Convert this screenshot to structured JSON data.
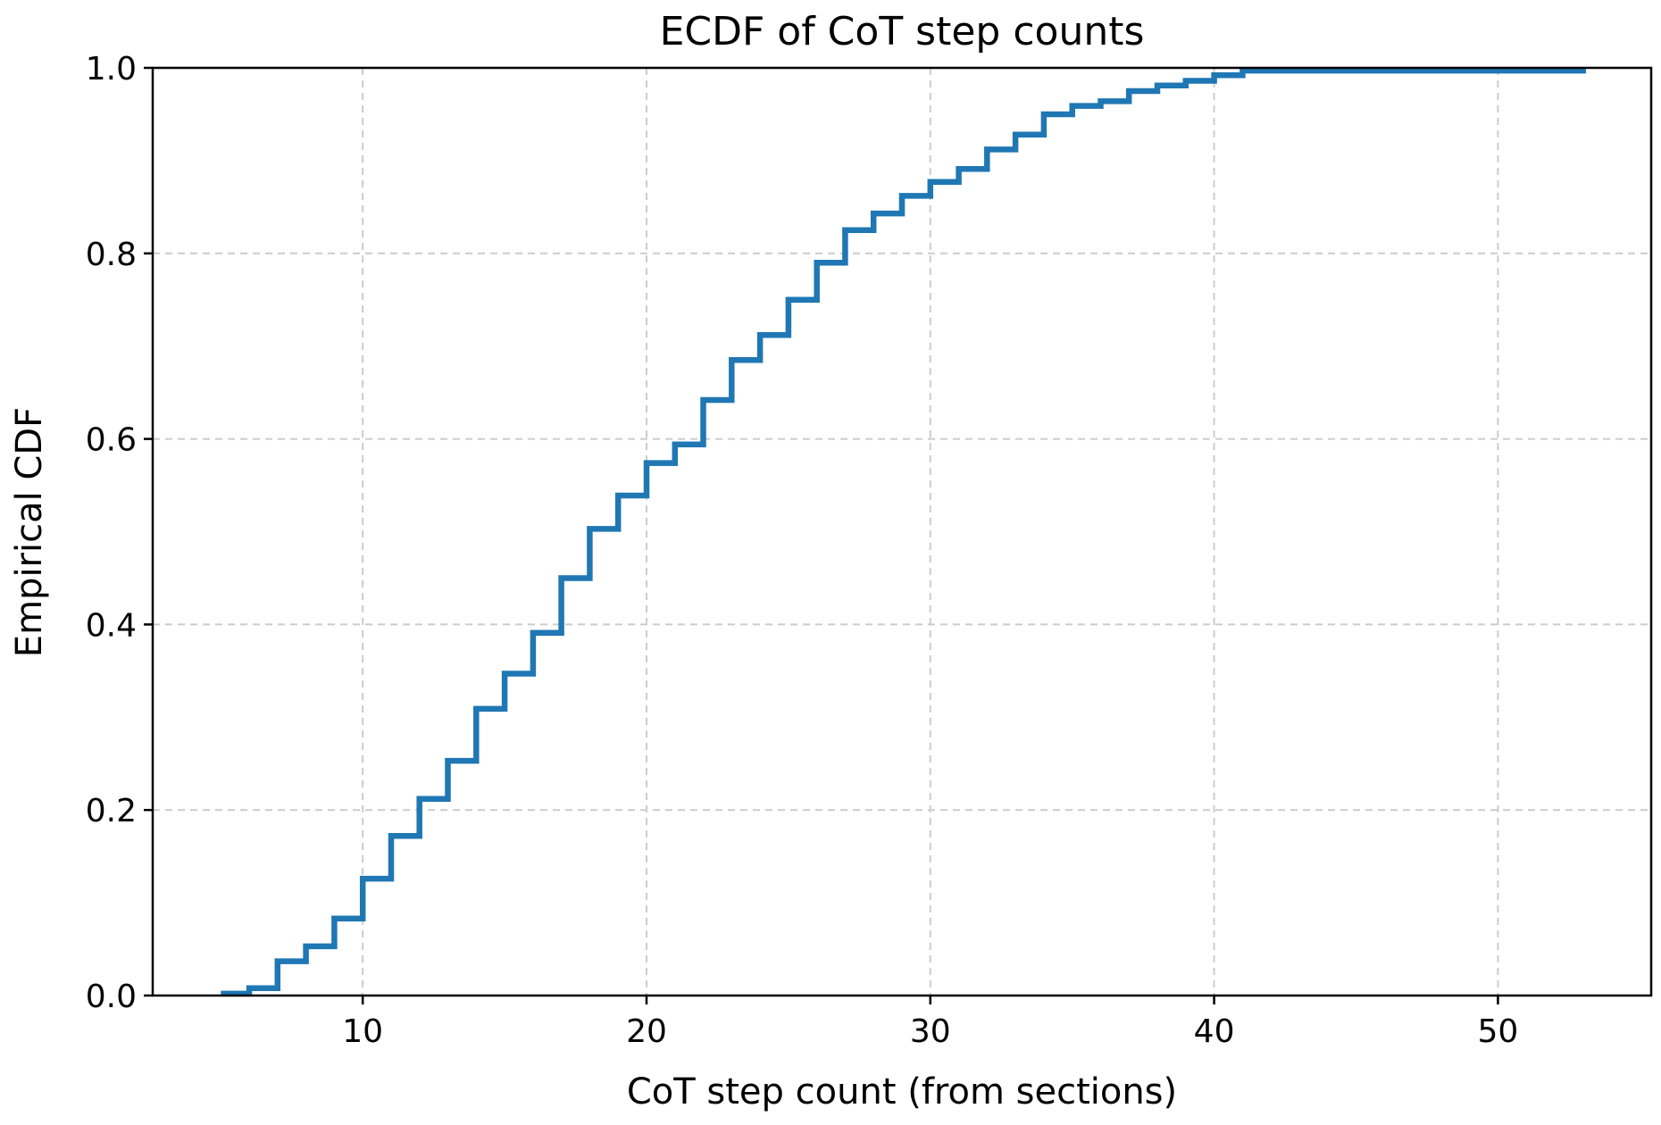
{
  "chart_data": {
    "type": "line",
    "step": "post",
    "title": "ECDF of CoT step counts",
    "xlabel": "CoT step count (from sections)",
    "ylabel": "Empirical CDF",
    "xlim": [
      2.6,
      55.4
    ],
    "ylim": [
      0,
      1
    ],
    "x_ticks": [
      10,
      20,
      30,
      40,
      50
    ],
    "y_ticks": [
      0.0,
      0.2,
      0.4,
      0.6,
      0.8,
      1.0
    ],
    "x_tick_labels": [
      "10",
      "20",
      "30",
      "40",
      "50"
    ],
    "y_tick_labels": [
      "0.0",
      "0.2",
      "0.4",
      "0.6",
      "0.8",
      "1.0"
    ],
    "grid": true,
    "series_color": "#1f77b4",
    "series": [
      {
        "x": [
          5,
          6,
          7,
          8,
          9,
          10,
          11,
          12,
          13,
          14,
          15,
          16,
          17,
          18,
          19,
          20,
          21,
          22,
          23,
          24,
          25,
          26,
          27,
          28,
          29,
          30,
          31,
          32,
          33,
          34,
          35,
          36,
          37,
          38,
          39,
          40,
          41,
          53
        ],
        "y": [
          0.002,
          0.008,
          0.037,
          0.053,
          0.083,
          0.126,
          0.172,
          0.212,
          0.253,
          0.309,
          0.347,
          0.391,
          0.45,
          0.503,
          0.539,
          0.574,
          0.594,
          0.642,
          0.685,
          0.712,
          0.75,
          0.79,
          0.825,
          0.843,
          0.862,
          0.877,
          0.891,
          0.912,
          0.928,
          0.95,
          0.959,
          0.964,
          0.975,
          0.981,
          0.986,
          0.992,
          0.997,
          1.0
        ]
      }
    ]
  }
}
